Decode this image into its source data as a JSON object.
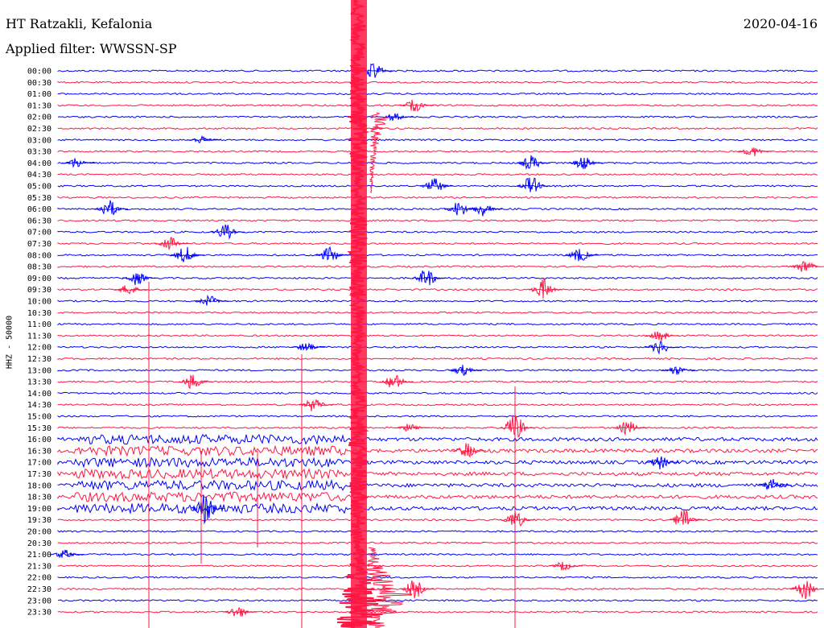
{
  "header": {
    "station": "HT Ratzakli, Kefalonia",
    "filter": "Applied filter: WWSSN-SP",
    "date": "2020-04-16"
  },
  "axis_label": "HHZ - 50000",
  "colors": {
    "trace_a": "#0000ff",
    "trace_b": "#ff1744"
  },
  "rows": [
    "00:00",
    "00:30",
    "01:00",
    "01:30",
    "02:00",
    "02:30",
    "03:00",
    "03:30",
    "04:00",
    "04:30",
    "05:00",
    "05:30",
    "06:00",
    "06:30",
    "07:00",
    "07:30",
    "08:00",
    "08:30",
    "09:00",
    "09:30",
    "10:00",
    "10:30",
    "11:00",
    "11:30",
    "12:00",
    "12:30",
    "13:00",
    "13:30",
    "14:00",
    "14:30",
    "15:00",
    "15:30",
    "16:00",
    "16:30",
    "17:00",
    "17:30",
    "18:00",
    "18:30",
    "19:00",
    "19:30",
    "20:00",
    "20:30",
    "21:00",
    "21:30",
    "22:00",
    "22:30",
    "23:00",
    "23:30"
  ]
}
